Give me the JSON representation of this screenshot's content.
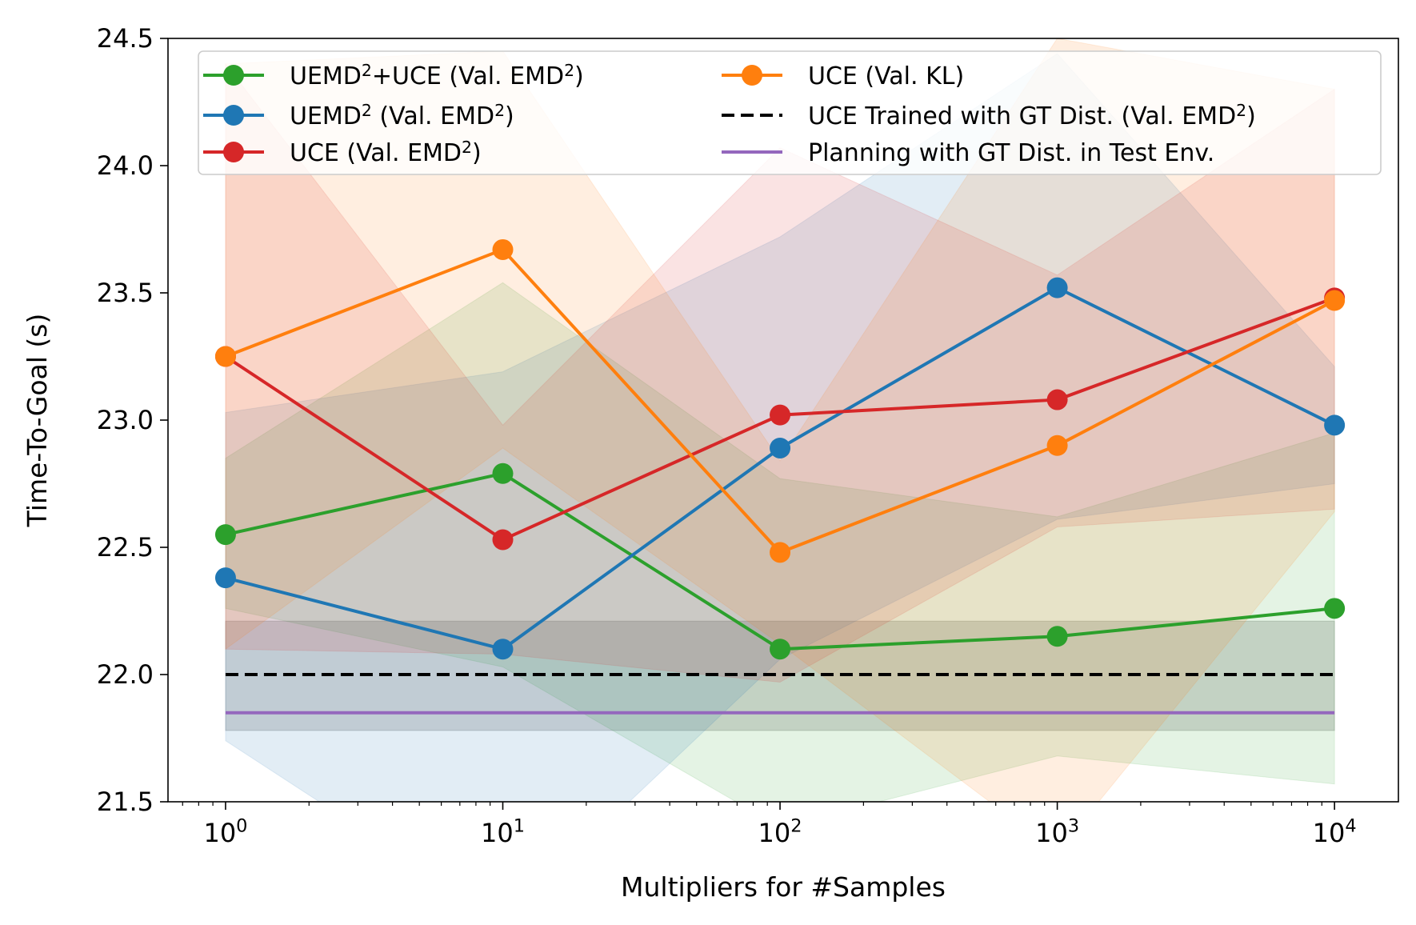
{
  "chart_data": {
    "type": "line",
    "xlabel": "Multipliers for #Samples",
    "ylabel": "Time-To-Goal (s)",
    "x_scale": "log",
    "x": [
      1,
      10,
      100,
      1000,
      10000
    ],
    "x_tick_labels": [
      {
        "base": "10",
        "exp": "0"
      },
      {
        "base": "10",
        "exp": "1"
      },
      {
        "base": "10",
        "exp": "2"
      },
      {
        "base": "10",
        "exp": "3"
      },
      {
        "base": "10",
        "exp": "4"
      }
    ],
    "xlim": [
      0.62,
      17000
    ],
    "ylim": [
      21.5,
      24.5
    ],
    "y_ticks": [
      "21.5",
      "22.0",
      "22.5",
      "23.0",
      "23.5",
      "24.0",
      "24.5"
    ],
    "grid": false,
    "legend_position": "top",
    "series": [
      {
        "name_parts": [
          {
            "t": "UEMD"
          },
          {
            "sup": "2"
          },
          {
            "t": "+UCE (Val. EMD"
          },
          {
            "sup": "2"
          },
          {
            "t": ")"
          }
        ],
        "color": "#2ca02c",
        "values": [
          22.55,
          22.79,
          22.1,
          22.15,
          22.26
        ],
        "lower": [
          22.26,
          22.03,
          21.4,
          21.68,
          21.57
        ],
        "upper": [
          22.85,
          23.54,
          22.77,
          22.62,
          22.95
        ]
      },
      {
        "name_parts": [
          {
            "t": "UEMD"
          },
          {
            "sup": "2"
          },
          {
            "t": " (Val. EMD"
          },
          {
            "sup": "2"
          },
          {
            "t": ")"
          }
        ],
        "color": "#1f77b4",
        "values": [
          22.38,
          22.1,
          22.89,
          23.52,
          22.98
        ],
        "lower": [
          21.74,
          21.03,
          22.06,
          22.61,
          22.75
        ],
        "upper": [
          23.03,
          23.19,
          23.72,
          24.44,
          23.21
        ]
      },
      {
        "name_parts": [
          {
            "t": "UCE (Val. EMD"
          },
          {
            "sup": "2"
          },
          {
            "t": ")"
          }
        ],
        "color": "#d62728",
        "values": [
          23.25,
          22.53,
          23.02,
          23.08,
          23.48
        ],
        "lower": [
          22.1,
          22.08,
          21.97,
          22.58,
          22.65
        ],
        "upper": [
          24.4,
          22.98,
          24.07,
          23.57,
          24.3
        ]
      },
      {
        "name_parts": [
          {
            "t": "UCE (Val. KL)"
          }
        ],
        "color": "#ff7f0e",
        "values": [
          23.25,
          23.67,
          22.48,
          22.9,
          23.47
        ],
        "lower": [
          22.1,
          22.89,
          22.12,
          21.3,
          22.64
        ],
        "upper": [
          24.4,
          24.45,
          22.84,
          24.5,
          24.3
        ]
      }
    ],
    "reference_lines": [
      {
        "name_parts": [
          {
            "t": "UCE Trained with GT Dist. (Val. EMD"
          },
          {
            "sup": "2"
          },
          {
            "t": ")"
          }
        ],
        "color": "#000000",
        "style": "dashed",
        "value": 22.0,
        "band": [
          21.78,
          22.21
        ]
      },
      {
        "name_parts": [
          {
            "t": "Planning with GT Dist. in Test Env."
          }
        ],
        "color": "#9467bd",
        "style": "solid",
        "value": 21.85
      }
    ]
  }
}
